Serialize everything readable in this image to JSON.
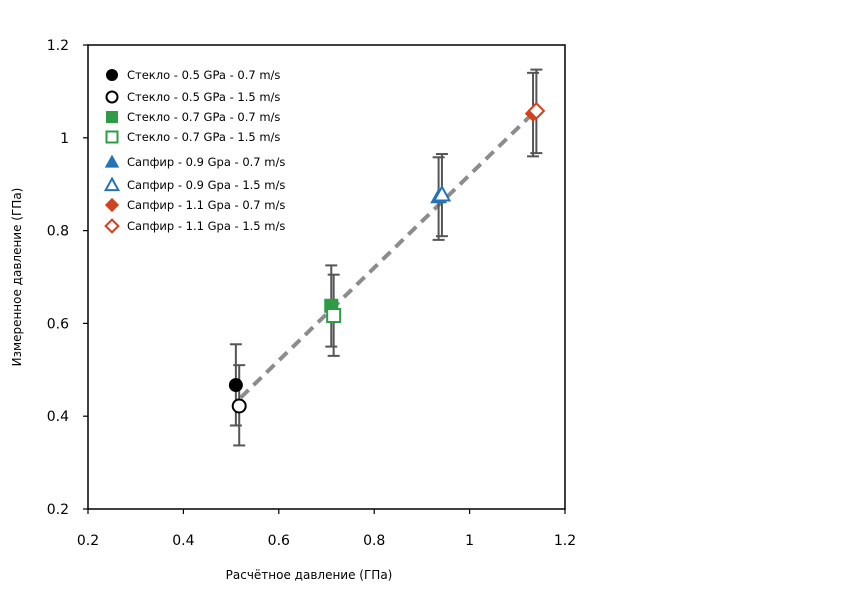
{
  "chart_data": {
    "type": "scatter",
    "title": "",
    "xlabel": "Расчётное давление (ГПа)",
    "ylabel": "Измеренное давление (ГПа)",
    "xlim": [
      0.2,
      1.2
    ],
    "ylim": [
      0.2,
      1.2
    ],
    "xticks": [
      "0.2",
      "0.4",
      "0.6",
      "0.8",
      "1",
      "1.2"
    ],
    "yticks": [
      "0.2",
      "0.4",
      "0.6",
      "0.8",
      "1",
      "1.2"
    ],
    "grid": false,
    "legend_position": "top-left",
    "fit_line": {
      "style": "dashed",
      "color": "#8c8c8c",
      "x": [
        0.52,
        1.13
      ],
      "y": [
        0.44,
        1.05
      ]
    },
    "series": [
      {
        "name": "Стекло - 0.5 GPa - 0.7 m/s",
        "marker": "circle",
        "filled": true,
        "color": "#000000",
        "x": [
          0.51
        ],
        "y": [
          0.467
        ],
        "yerr_low": [
          0.38
        ],
        "yerr_high": [
          0.555
        ]
      },
      {
        "name": "Стекло - 0.5 GPa - 1.5 m/s",
        "marker": "circle",
        "filled": false,
        "color": "#000000",
        "x": [
          0.517
        ],
        "y": [
          0.422
        ],
        "yerr_low": [
          0.337
        ],
        "yerr_high": [
          0.51
        ]
      },
      {
        "name": "Стекло - 0.7 GPa - 0.7 m/s",
        "marker": "square",
        "filled": true,
        "color": "#2e9c47",
        "x": [
          0.71
        ],
        "y": [
          0.638
        ],
        "yerr_low": [
          0.55
        ],
        "yerr_high": [
          0.725
        ]
      },
      {
        "name": "Стекло - 0.7 GPa - 1.5 m/s",
        "marker": "square",
        "filled": false,
        "color": "#2e9c47",
        "x": [
          0.715
        ],
        "y": [
          0.617
        ],
        "yerr_low": [
          0.53
        ],
        "yerr_high": [
          0.705
        ]
      },
      {
        "name": "Сапфир - 0.9 Gpa - 0.7 m/s",
        "marker": "triangle",
        "filled": true,
        "color": "#2672b8",
        "x": [
          0.935
        ],
        "y": [
          0.873
        ],
        "yerr_low": [
          0.78
        ],
        "yerr_high": [
          0.958
        ]
      },
      {
        "name": "Сапфир - 0.9 Gpa - 1.5 m/s",
        "marker": "triangle",
        "filled": false,
        "color": "#2672b8",
        "x": [
          0.942
        ],
        "y": [
          0.878
        ],
        "yerr_low": [
          0.788
        ],
        "yerr_high": [
          0.965
        ]
      },
      {
        "name": "Сапфир - 1.1 Gpa - 0.7 m/s",
        "marker": "diamond",
        "filled": true,
        "color": "#d2401e",
        "x": [
          1.133
        ],
        "y": [
          1.052
        ],
        "yerr_low": [
          0.96
        ],
        "yerr_high": [
          1.14
        ]
      },
      {
        "name": "Сапфир - 1.1 Gpa - 1.5 m/s",
        "marker": "diamond",
        "filled": false,
        "color": "#d2401e",
        "x": [
          1.14
        ],
        "y": [
          1.058
        ],
        "yerr_low": [
          0.967
        ],
        "yerr_high": [
          1.147
        ]
      }
    ]
  }
}
